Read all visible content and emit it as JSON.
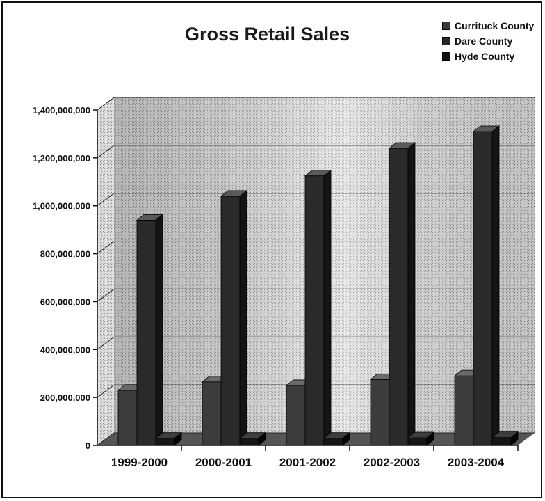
{
  "chart_data": {
    "type": "bar",
    "title": "Gross Retail Sales",
    "xlabel": "",
    "ylabel": "",
    "categories": [
      "1999-2000",
      "2000-2001",
      "2001-2002",
      "2002-2003",
      "2003-2004"
    ],
    "series": [
      {
        "name": "Currituck County",
        "values": [
          230000000,
          265000000,
          250000000,
          275000000,
          290000000
        ],
        "color": "#3a3a3a"
      },
      {
        "name": "Dare County",
        "values": [
          940000000,
          1040000000,
          1125000000,
          1240000000,
          1310000000
        ],
        "color": "#262626"
      },
      {
        "name": "Hyde County",
        "values": [
          30000000,
          30000000,
          30000000,
          32000000,
          33000000
        ],
        "color": "#111111"
      }
    ],
    "ylim": [
      0,
      1400000000
    ],
    "yticks": [
      0,
      200000000,
      400000000,
      600000000,
      800000000,
      1000000000,
      1200000000,
      1400000000
    ],
    "ytick_labels": [
      "0",
      "200,000,000",
      "400,000,000",
      "600,000,000",
      "800,000,000",
      "1,000,000,000",
      "1,200,000,000",
      "1,400,000,000"
    ],
    "grid": true,
    "legend_position": "top-right",
    "style": "3d-clustered-column"
  }
}
